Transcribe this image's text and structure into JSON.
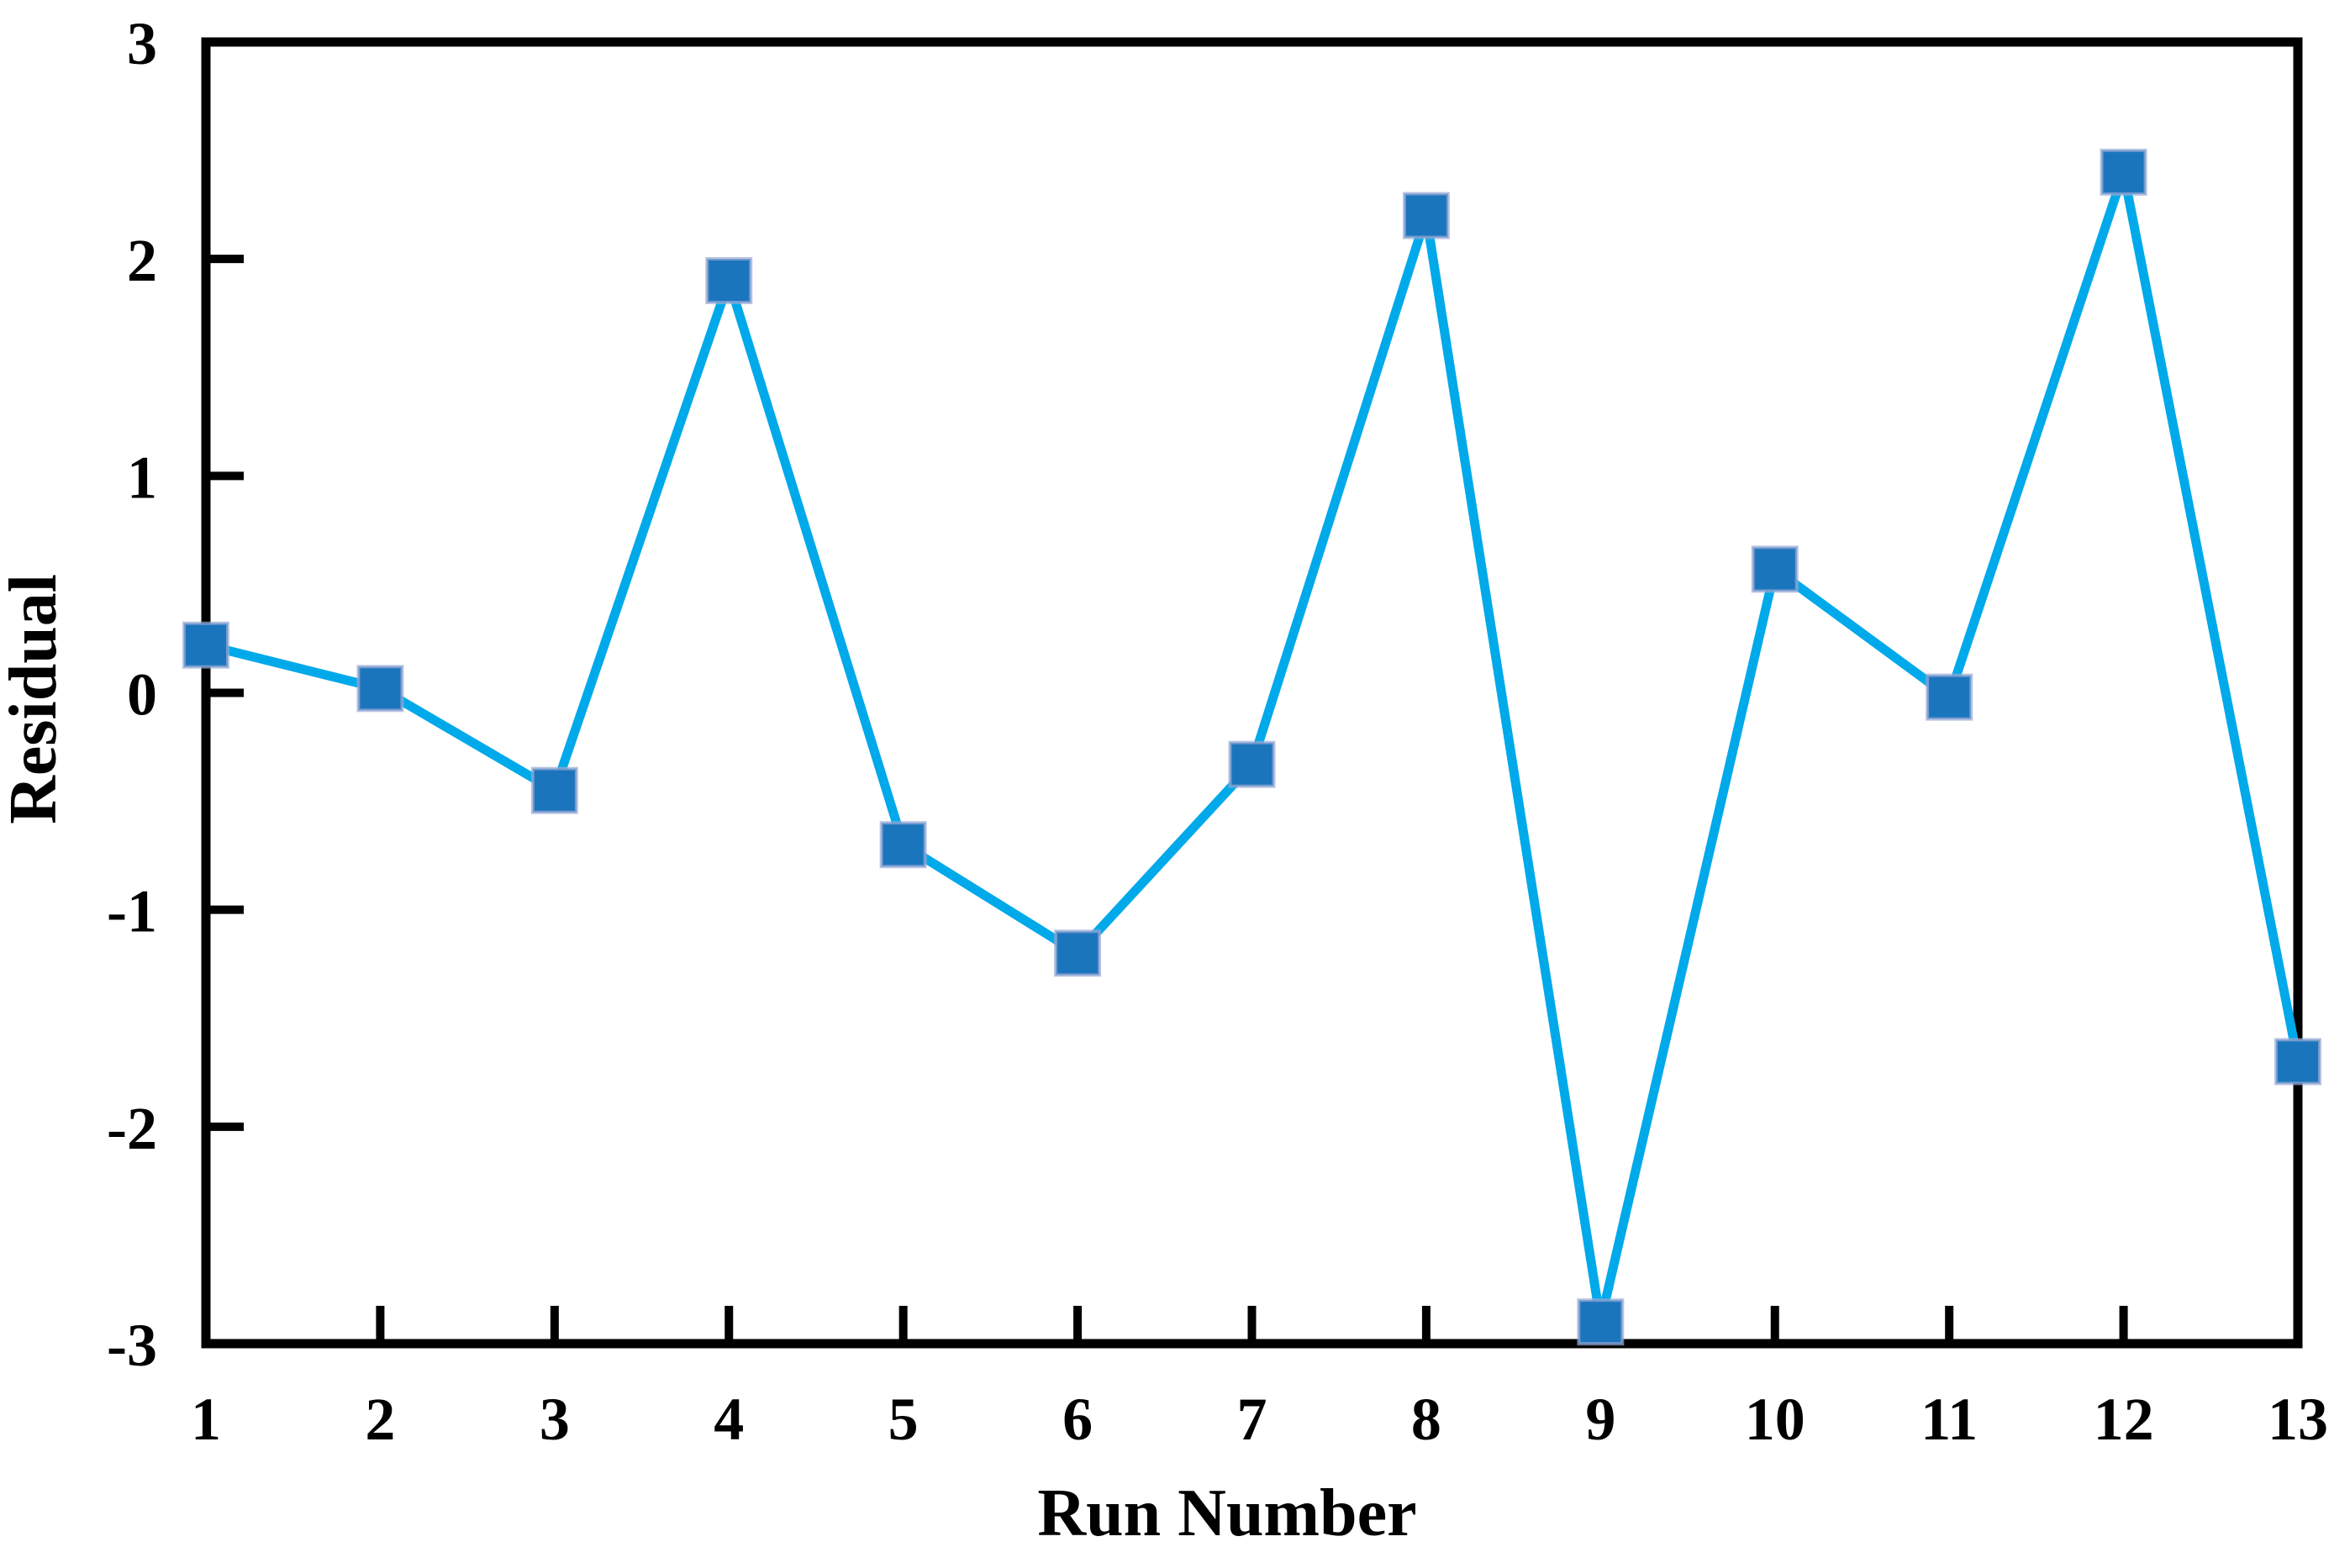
{
  "figure": {
    "x_axis_title": "Run Number",
    "y_axis_title": "Residual"
  },
  "chart_data": {
    "type": "line",
    "title": "",
    "xlabel": "Run Number",
    "ylabel": "Residual",
    "categories": [
      "1",
      "2",
      "3",
      "4",
      "5",
      "6",
      "7",
      "8",
      "9",
      "10",
      "11",
      "12",
      "13"
    ],
    "series": [
      {
        "name": "Residual",
        "values": [
          0.22,
          0.02,
          -0.45,
          1.9,
          -0.7,
          -1.2,
          -0.33,
          2.2,
          -2.9,
          0.57,
          -0.02,
          2.4,
          -1.7
        ]
      }
    ],
    "xlim": [
      1,
      13
    ],
    "ylim": [
      -3,
      3
    ],
    "y_ticks": [
      3,
      2,
      1,
      0,
      -1,
      -2,
      -3
    ],
    "grid": false,
    "legend_position": "none",
    "marker_shape": "square",
    "colors": {
      "line": "#00A9E9",
      "marker_fill": "#1B75BC",
      "marker_edge": "#98AAD6",
      "axis": "#000000",
      "background": "#FFFFFF"
    }
  }
}
